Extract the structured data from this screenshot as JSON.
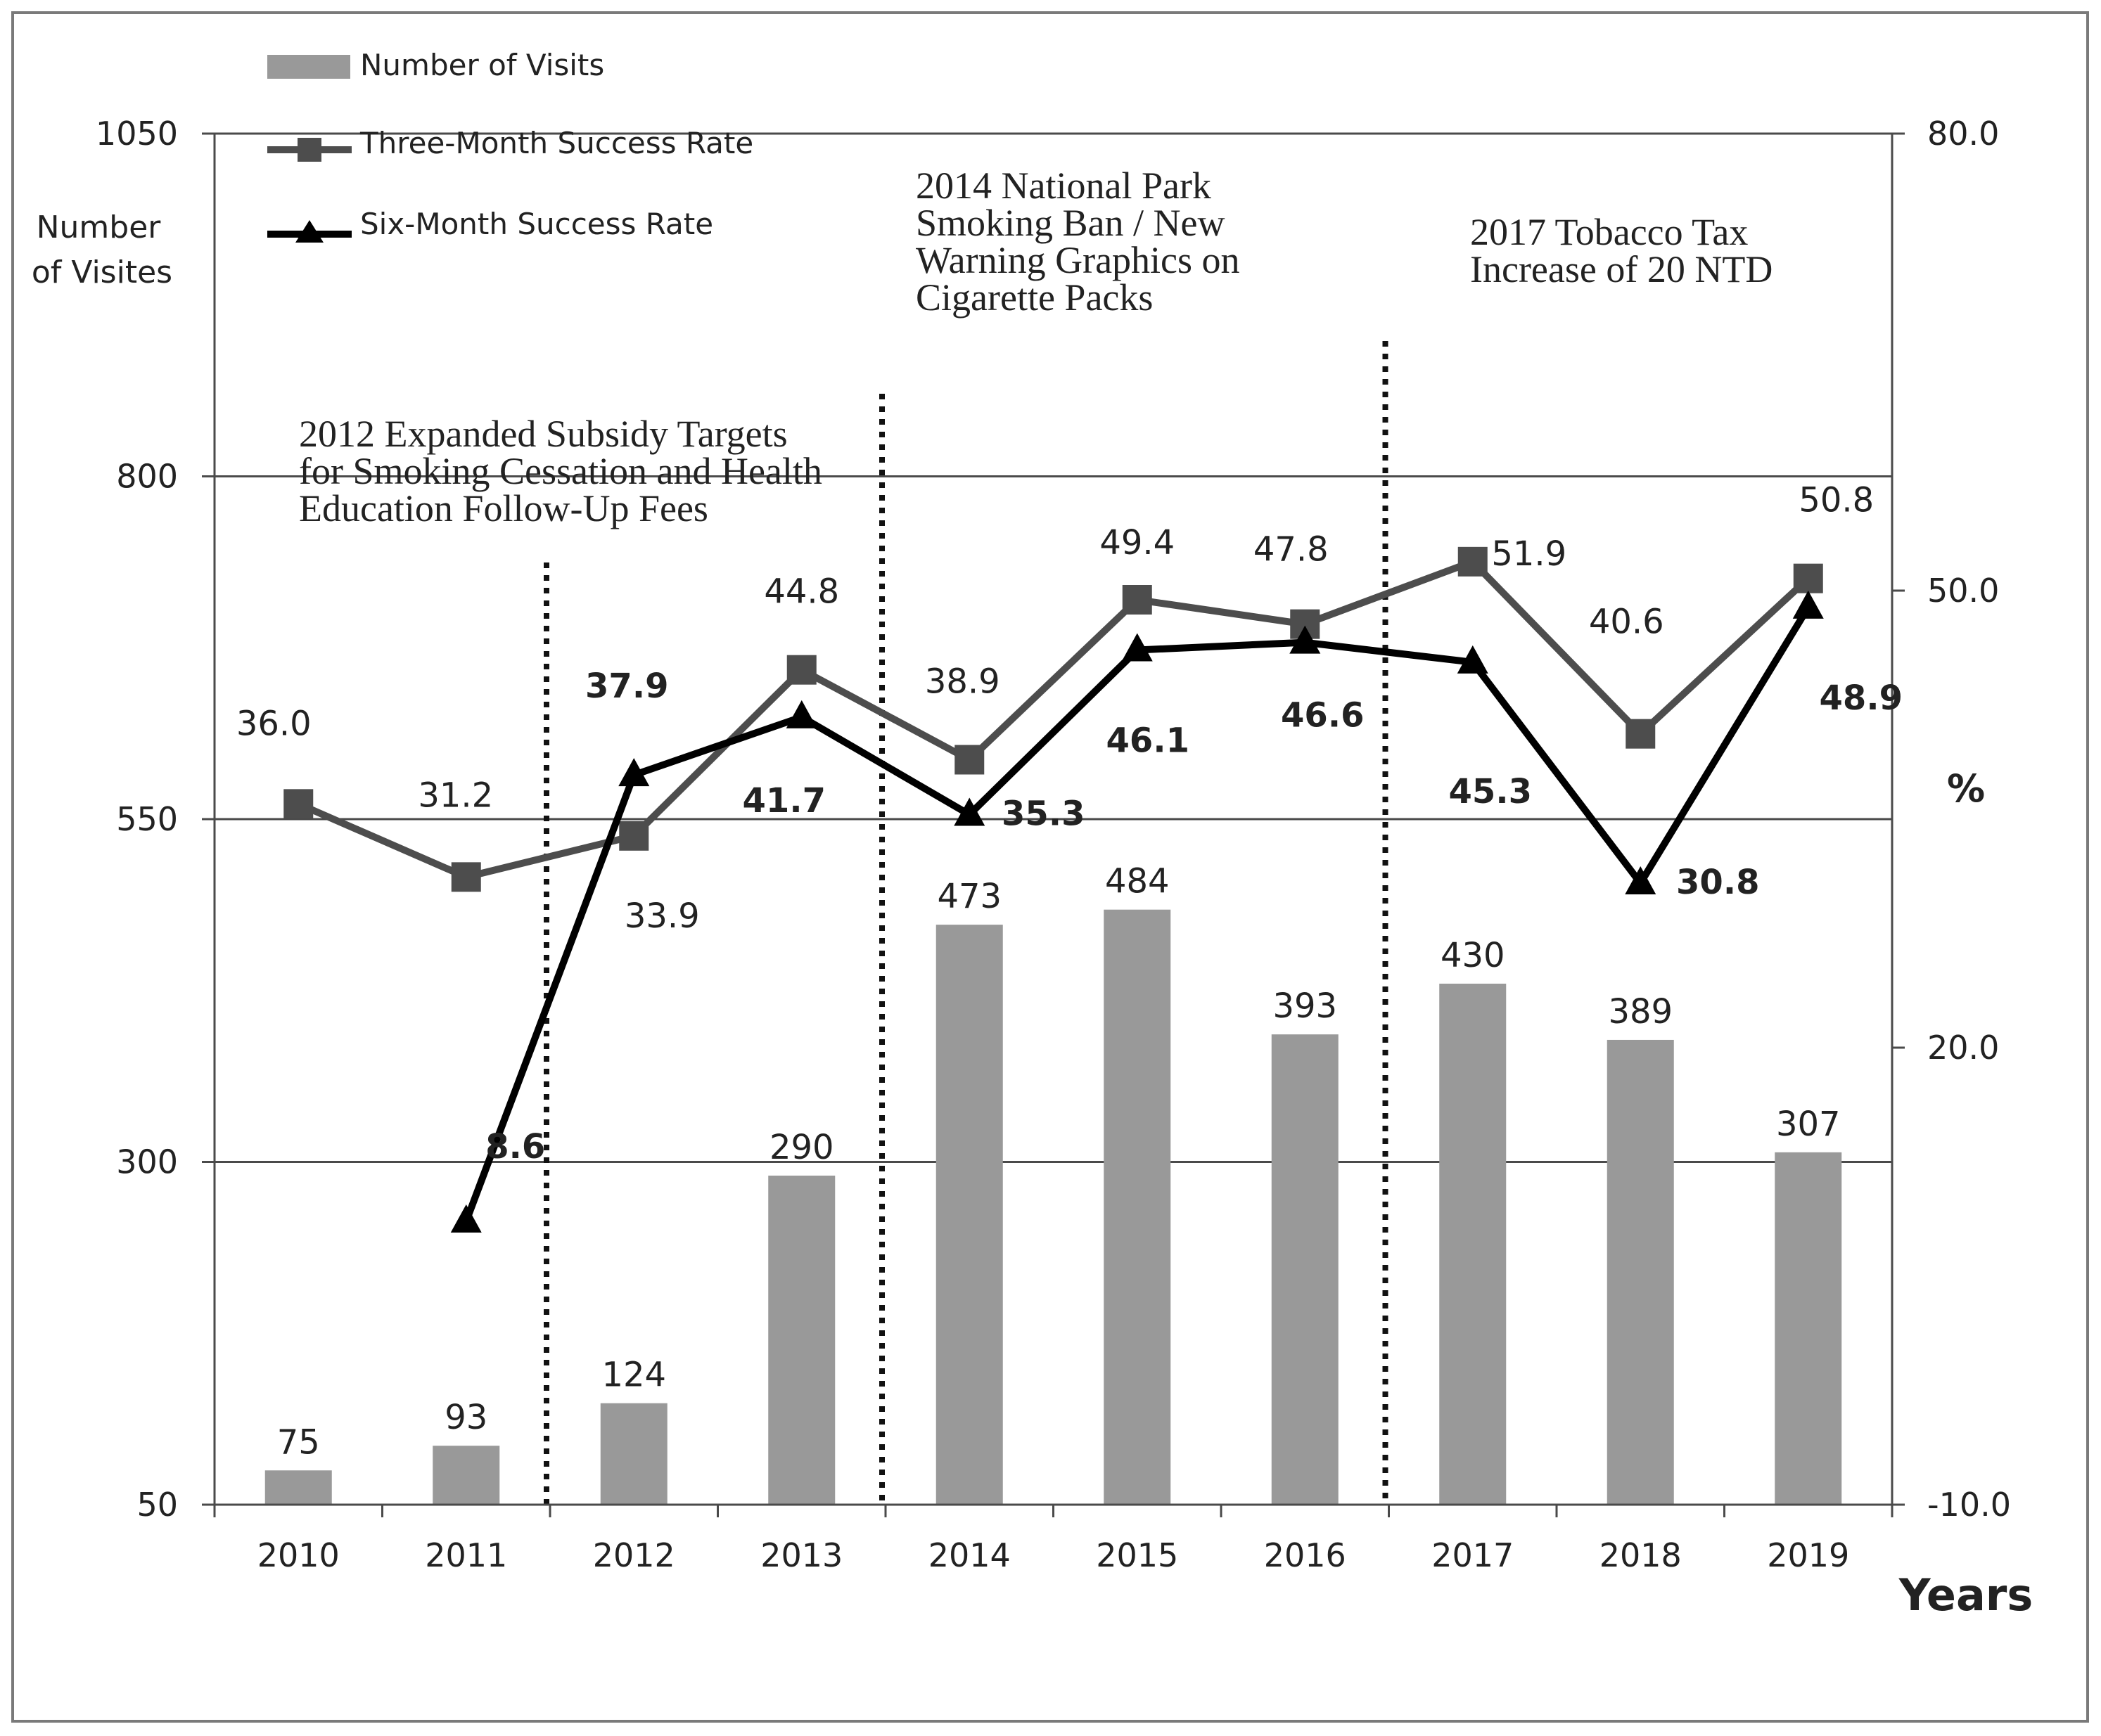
{
  "chart_data": {
    "type": "bar",
    "categories": [
      "2010",
      "2011",
      "2012",
      "2013",
      "2014",
      "2015",
      "2016",
      "2017",
      "2018",
      "2019"
    ],
    "series": [
      {
        "name": "Number of Visits",
        "kind": "bar",
        "axis": "left",
        "color": "#999999",
        "values": [
          75,
          93,
          124,
          290,
          473,
          484,
          393,
          430,
          389,
          307
        ],
        "labels": [
          "75",
          "93",
          "124",
          "290",
          "473",
          "484",
          "393",
          "430",
          "389",
          "307"
        ]
      },
      {
        "name": "Three-Month Success Rate",
        "kind": "line",
        "marker": "square",
        "axis": "right",
        "color": "#4d4d4d",
        "values": [
          36.0,
          31.2,
          33.9,
          44.8,
          38.9,
          49.4,
          47.8,
          51.9,
          40.6,
          50.8
        ],
        "labels": [
          "36.0",
          "31.2",
          "33.9",
          "44.8",
          "38.9",
          "49.4",
          "47.8",
          "51.9",
          "40.6",
          "50.8"
        ]
      },
      {
        "name": "Six-Month Success Rate",
        "kind": "line",
        "marker": "triangle",
        "axis": "right",
        "color": "#000000",
        "values": [
          null,
          8.6,
          37.9,
          41.7,
          35.3,
          46.1,
          46.6,
          45.3,
          30.8,
          48.9
        ],
        "labels": [
          null,
          "8.6",
          "37.9",
          "41.7",
          "35.3",
          "46.1",
          "46.6",
          "45.3",
          "30.8",
          "48.9"
        ]
      }
    ],
    "y_left": {
      "title_line1": "Number",
      "title_line2": "of Visites",
      "min": 50,
      "max": 1050,
      "ticks": [
        50,
        300,
        550,
        800,
        1050
      ],
      "tick_labels": [
        "50",
        "300",
        "550",
        "800",
        "1050"
      ]
    },
    "y_right": {
      "title": "%",
      "min": -10.0,
      "max": 80.0,
      "ticks": [
        -10.0,
        20.0,
        50.0,
        80.0
      ],
      "tick_labels": [
        "-10.0",
        "20.0",
        "50.0",
        "80.0"
      ]
    },
    "xlabel": "Years",
    "grid": true,
    "legend": {
      "placement": "top-left",
      "entries": [
        "Number of Visits",
        "Three-Month Success Rate",
        "Six-Month Success Rate"
      ]
    },
    "events": [
      {
        "year": "2012",
        "lines": [
          "2012 Expanded Subsidy Targets",
          "for Smoking Cessation and Health",
          "Education Follow-Up Fees"
        ]
      },
      {
        "year": "2014",
        "lines": [
          "2014 National Park",
          "Smoking Ban / New",
          "Warning Graphics on",
          "Cigarette Packs"
        ]
      },
      {
        "year": "2017",
        "lines": [
          "2017 Tobacco Tax",
          "Increase of 20 NTD"
        ]
      }
    ]
  }
}
